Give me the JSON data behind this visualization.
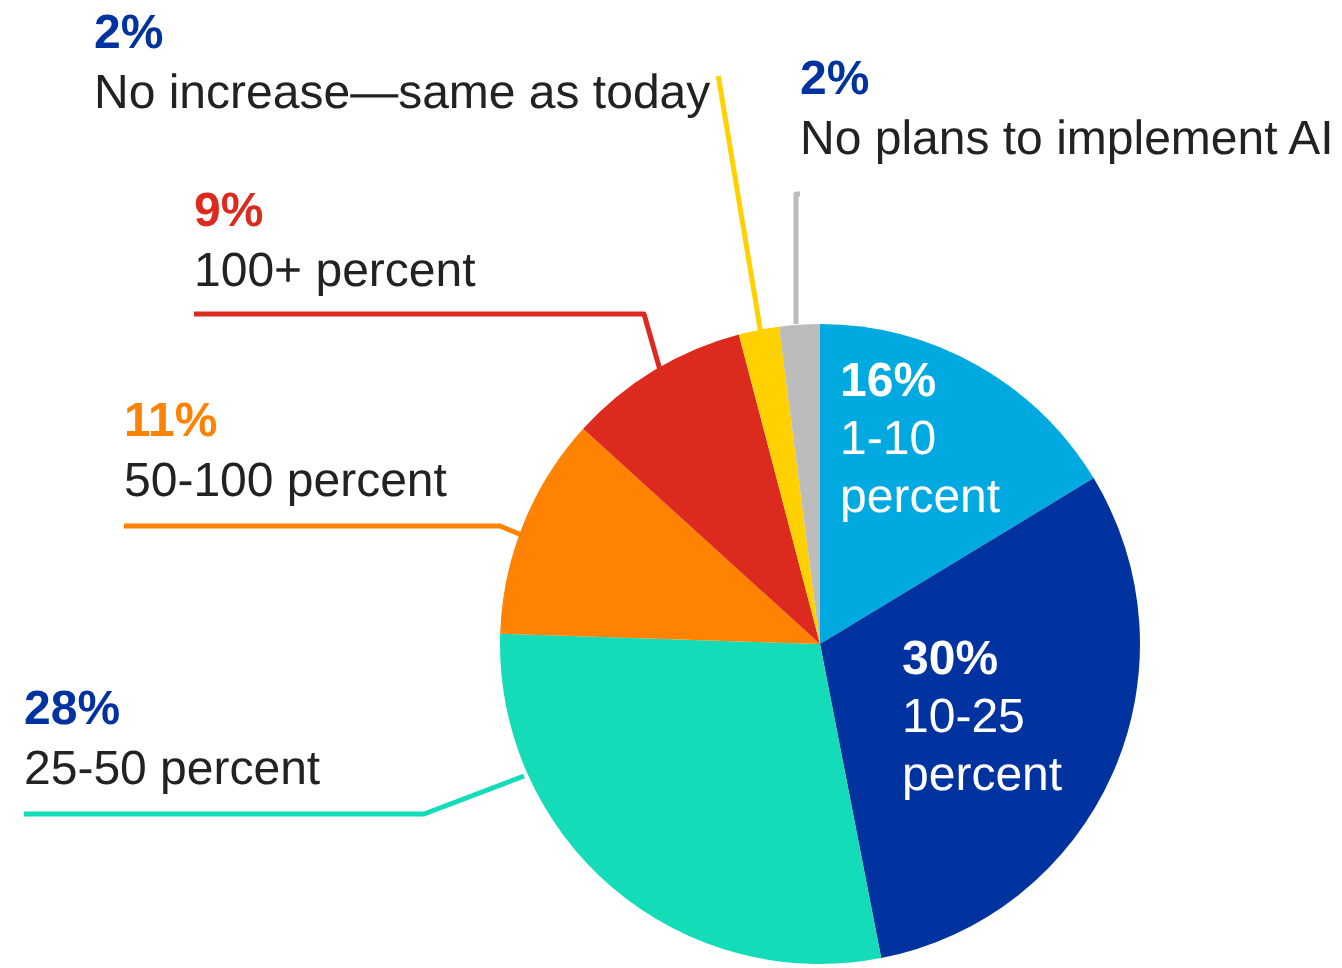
{
  "chart_data": {
    "type": "pie",
    "categories": [
      "1-10 percent",
      "10-25 percent",
      "25-50 percent",
      "50-100 percent",
      "100+ percent",
      "No increase—same as today",
      "No plans to implement AI"
    ],
    "values": [
      16,
      30,
      28,
      11,
      9,
      2,
      2
    ],
    "value_labels": [
      "16%",
      "30%",
      "28%",
      "11%",
      "9%",
      "2%",
      "2%"
    ],
    "colors": [
      "#00a9e0",
      "#0033a0",
      "#14dcb9",
      "#ff8200",
      "#dc2a1e",
      "#ffd100",
      "#bcbcbc"
    ],
    "legend": false
  }
}
